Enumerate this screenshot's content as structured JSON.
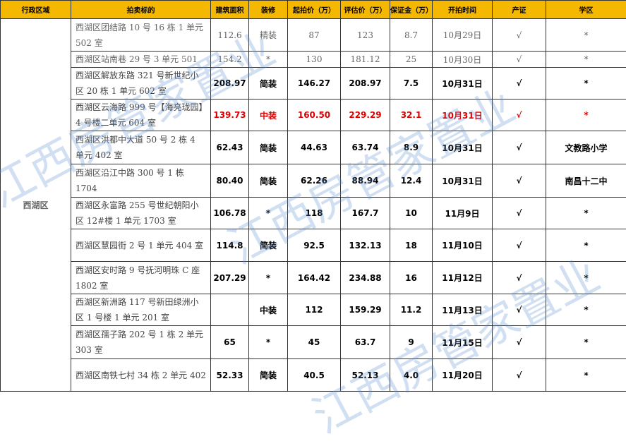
{
  "headers": [
    "行政区域",
    "拍卖标的",
    "建筑面积",
    "装修",
    "起拍价（万）",
    "评估价（万）",
    "保证金（万）",
    "开拍时间",
    "产证",
    "学区"
  ],
  "region": "西湖区",
  "watermark": "江西房管家置业",
  "rows": [
    [
      "西湖区团结路 10 号 16 栋 1 单元 502 室",
      "112.6",
      "精装",
      "87",
      "123",
      "8.7",
      "10月29日",
      "√",
      "*"
    ],
    [
      "西湖区站南巷 29 号 3 单元 501",
      "154.2",
      "*",
      "130",
      "181.12",
      "25",
      "10月30日",
      "√",
      "*"
    ],
    [
      "西湖区解放东路 321 号新世纪小区 20 栋 1 单元 602 室",
      "208.97",
      "简装",
      "146.27",
      "208.97",
      "7.5",
      "10月31日",
      "√",
      "*"
    ],
    [
      "西湖区云海路 999 号【海亮珑园】4 号楼二单元 604 室",
      "139.73",
      "中装",
      "160.50",
      "229.29",
      "32.1",
      "10月31日",
      "√",
      "*"
    ],
    [
      "西湖区洪都中大道 50 号 2 栋 4 单元 402 室",
      "62.43",
      "简装",
      "44.63",
      "63.74",
      "8.9",
      "10月31日",
      "√",
      "文教路小学"
    ],
    [
      "西湖区沿江中路 300 号 1 栋 1704",
      "80.40",
      "简装",
      "62.26",
      "88.94",
      "12.4",
      "10月31日",
      "√",
      "南昌十二中"
    ],
    [
      "西湖区永富路 255 号世纪朝阳小区 12#楼 1 单元 1703 室",
      "106.78",
      "*",
      "118",
      "167.7",
      "10",
      "11月9日",
      "√",
      "*"
    ],
    [
      "西湖区慧园街 2 号 1 单元 404 室",
      "114.8",
      "简装",
      "92.5",
      "132.13",
      "18",
      "11月10日",
      "√",
      "*"
    ],
    [
      "西湖区安时路 9 号抚河明珠 C 座 1802 室",
      "207.29",
      "*",
      "164.42",
      "234.88",
      "16",
      "11月12日",
      "√",
      "*"
    ],
    [
      "西湖区新洲路 117 号新田绿洲小区 1 号楼 1 单元 201 室",
      "",
      "中装",
      "112",
      "159.29",
      "11.2",
      "11月13日",
      "√",
      "*"
    ],
    [
      "西湖区孺子路 202 号 1 栋 2 单元 303 室",
      "65",
      "*",
      "45",
      "63.7",
      "9",
      "11月15日",
      "√",
      "*"
    ],
    [
      "西湖区南铁七村 34 栋 2 单元 402",
      "52.33",
      "简装",
      "40.5",
      "52.13",
      "4.0",
      "11月20日",
      "√",
      "*"
    ]
  ]
}
